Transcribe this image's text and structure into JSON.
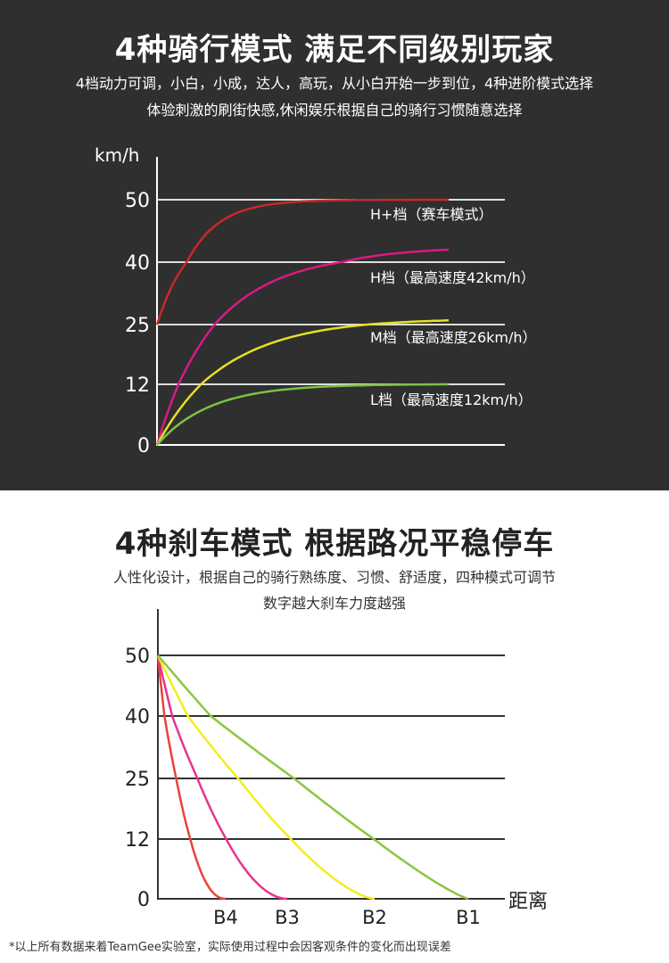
{
  "top": {
    "title": "4种骑行模式 满足不同级别玩家",
    "subtitle_1": "4档动力可调，小白，小成，达人，高玩，从小白开始一步到位，4种进阶模式选择",
    "subtitle_2": "体验刺激的刷街快感,休闲娱乐根据自己的骑行习惯随意选择"
  },
  "bottom": {
    "title": "4种刹车模式 根据路况平稳停车",
    "subtitle_1": "人性化设计，根据自己的骑行熟练度、习惯、舒适度，四种模式可调节",
    "subtitle_2": "数字越大刹车力度越强"
  },
  "footnote": "*以上所有数据来着TeamGee实验室，实际使用过程中会因客观条件的变化而出现误差",
  "chart_data": [
    {
      "type": "line",
      "ylabel": "km/h",
      "y_ticks": [
        "0",
        "12",
        "25",
        "40",
        "50"
      ],
      "grid": true,
      "series": [
        {
          "name": "H+档（赛车模式）",
          "color": "#c8282a",
          "start": 25,
          "end": 50
        },
        {
          "name": "H档（最高速度42km/h）",
          "color": "#d91a84",
          "start": 0,
          "end": 42
        },
        {
          "name": "M档（最高速度26km/h）",
          "color": "#e6e024",
          "start": 0,
          "end": 26
        },
        {
          "name": "L档（最高速度12km/h）",
          "color": "#7cc242",
          "start": 0,
          "end": 12
        }
      ]
    },
    {
      "type": "line",
      "xlabel": "距离",
      "y_ticks": [
        "0",
        "12",
        "25",
        "40",
        "50"
      ],
      "x_ticks": [
        "B4",
        "B3",
        "B2",
        "B1"
      ],
      "grid": true,
      "series": [
        {
          "name": "B4",
          "color": "#e8443a",
          "start": 50,
          "end": 0
        },
        {
          "name": "B3",
          "color": "#e8348e",
          "start": 50,
          "end": 0
        },
        {
          "name": "B2",
          "color": "#f2ee1c",
          "start": 50,
          "end": 0
        },
        {
          "name": "B1",
          "color": "#8cc63f",
          "start": 50,
          "end": 0
        }
      ]
    }
  ]
}
